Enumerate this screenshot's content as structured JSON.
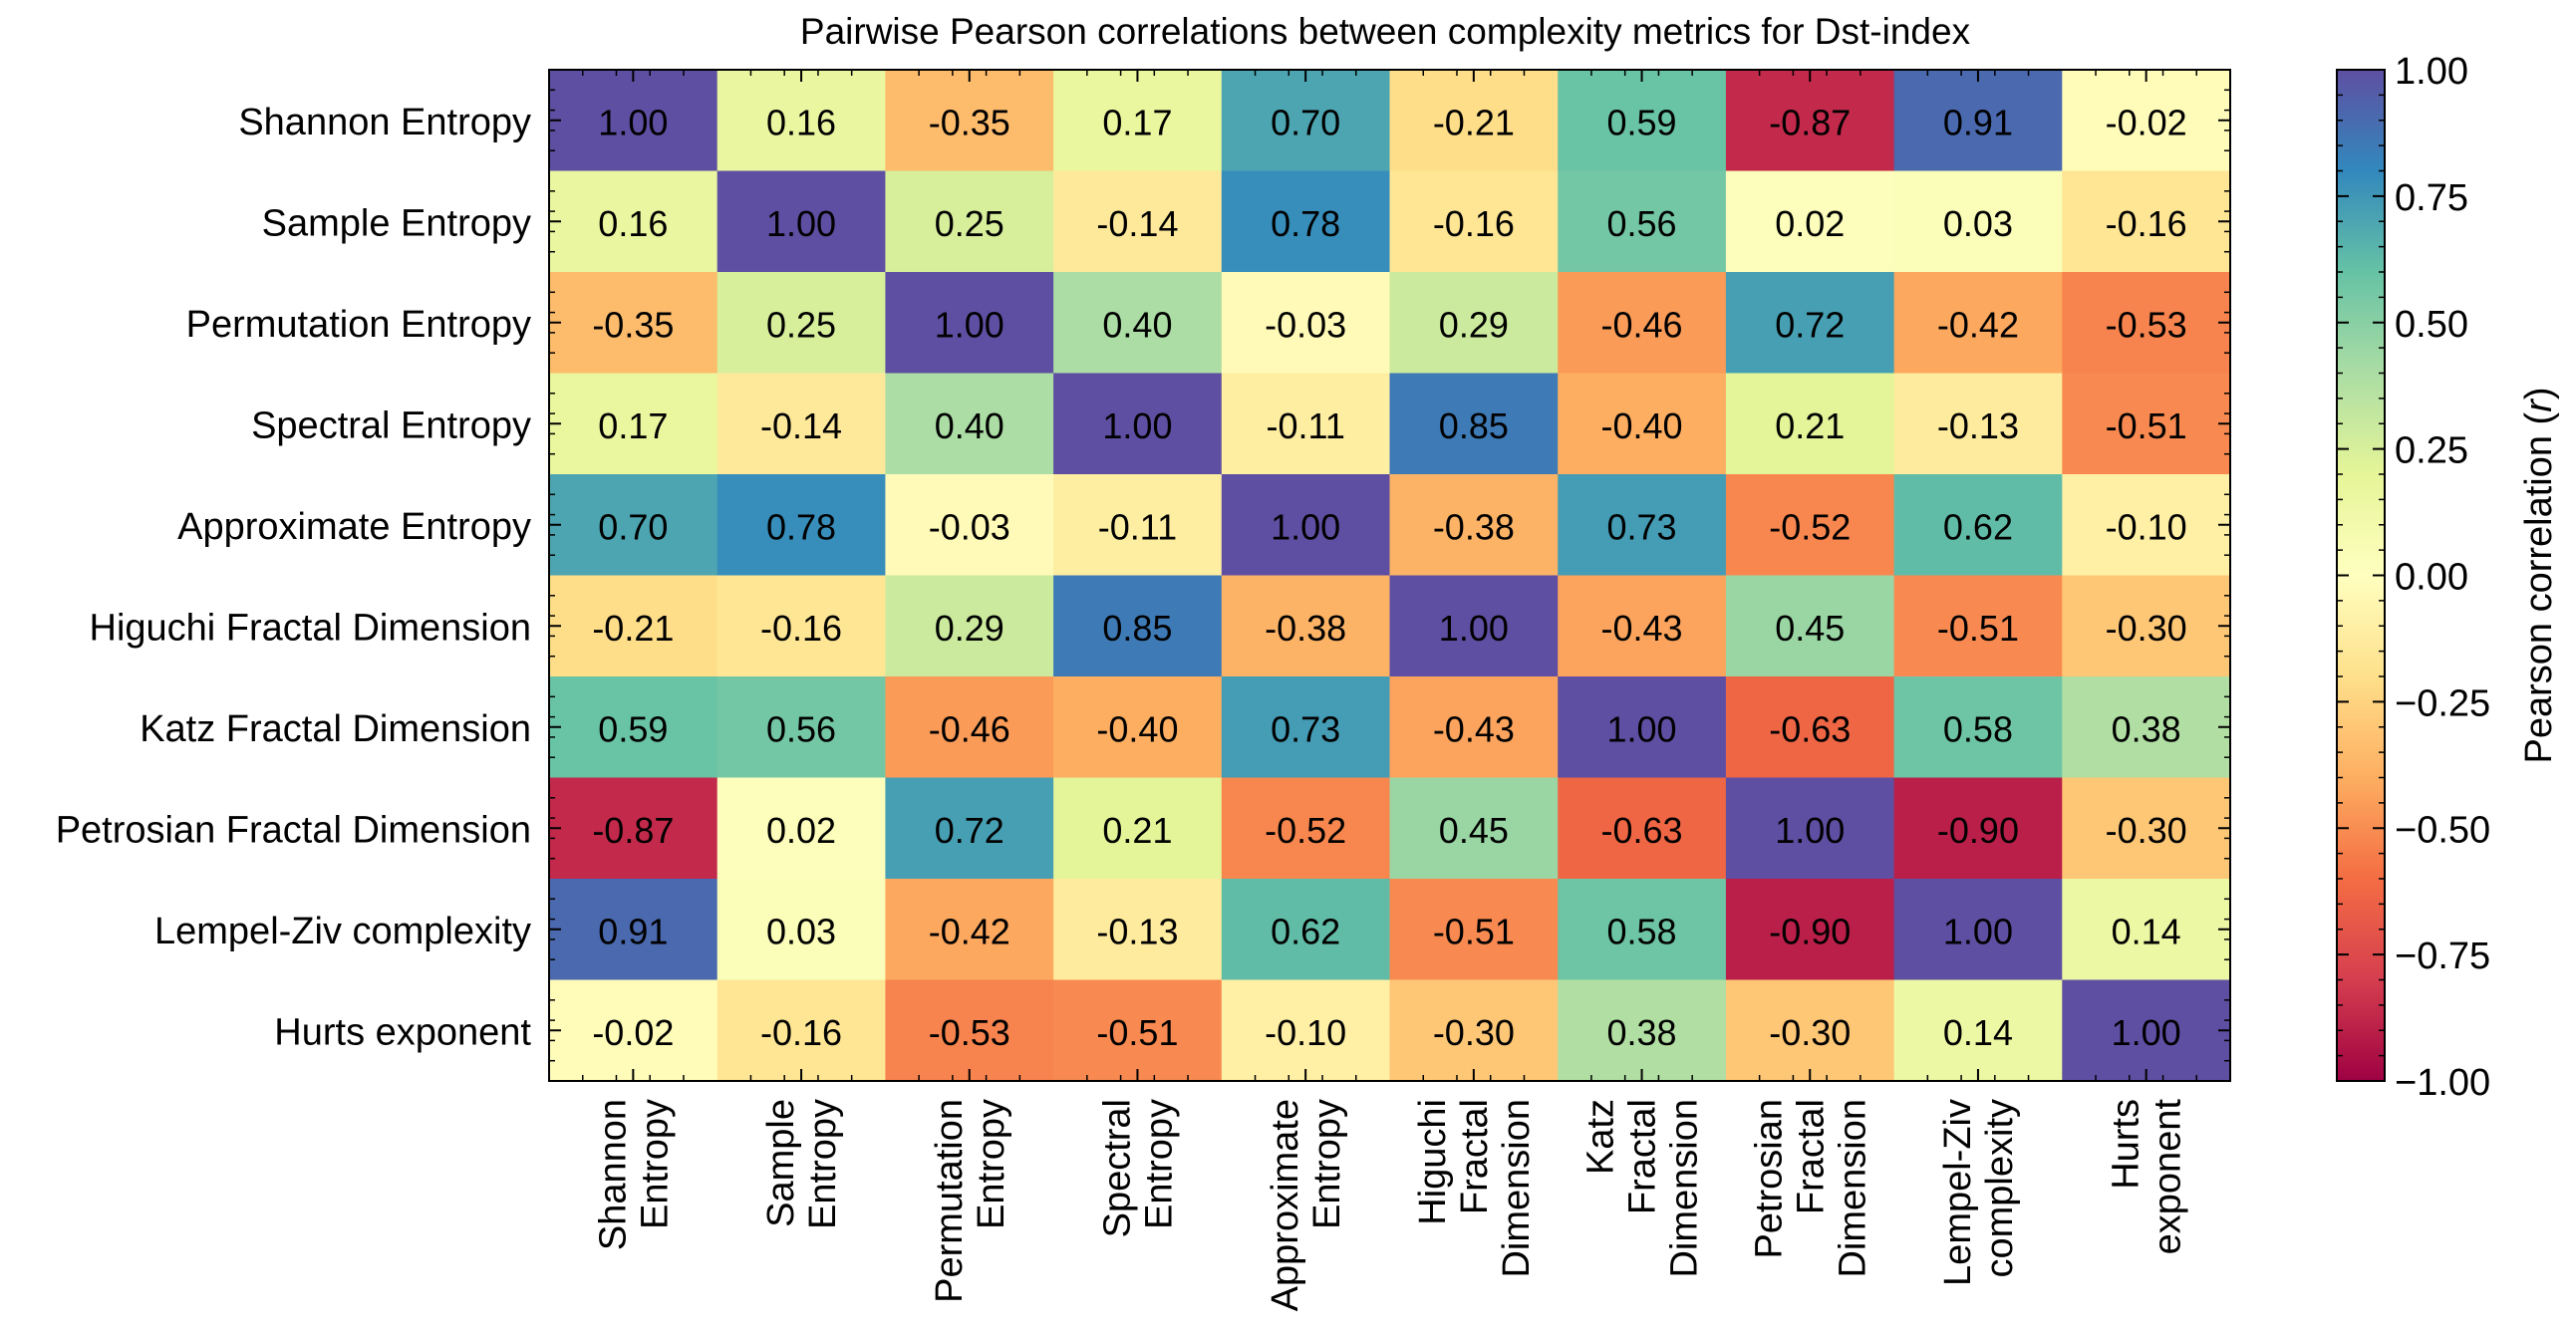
{
  "chart_data": {
    "type": "heatmap",
    "title": "Pairwise Pearson correlations between complexity metrics for Dst-index",
    "row_labels": [
      "Shannon Entropy",
      "Sample Entropy",
      "Permutation Entropy",
      "Spectral Entropy",
      "Approximate Entropy",
      "Higuchi Fractal Dimension",
      "Katz Fractal Dimension",
      "Petrosian Fractal Dimension",
      "Lempel-Ziv complexity",
      "Hurts exponent"
    ],
    "col_labels": [
      [
        "Shannon",
        "Entropy"
      ],
      [
        "Sample",
        "Entropy"
      ],
      [
        "Permutation",
        "Entropy"
      ],
      [
        "Spectral",
        "Entropy"
      ],
      [
        "Approximate",
        "Entropy"
      ],
      [
        "Higuchi",
        "Fractal",
        "Dimension"
      ],
      [
        "Katz",
        "Fractal",
        "Dimension"
      ],
      [
        "Petrosian",
        "Fractal",
        "Dimension"
      ],
      [
        "Lempel-Ziv",
        "complexity"
      ],
      [
        "Hurts",
        "exponent"
      ]
    ],
    "values": [
      [
        1.0,
        0.16,
        -0.35,
        0.17,
        0.7,
        -0.21,
        0.59,
        -0.87,
        0.91,
        -0.02
      ],
      [
        0.16,
        1.0,
        0.25,
        -0.14,
        0.78,
        -0.16,
        0.56,
        0.02,
        0.03,
        -0.16
      ],
      [
        -0.35,
        0.25,
        1.0,
        0.4,
        -0.03,
        0.29,
        -0.46,
        0.72,
        -0.42,
        -0.53
      ],
      [
        0.17,
        -0.14,
        0.4,
        1.0,
        -0.11,
        0.85,
        -0.4,
        0.21,
        -0.13,
        -0.51
      ],
      [
        0.7,
        0.78,
        -0.03,
        -0.11,
        1.0,
        -0.38,
        0.73,
        -0.52,
        0.62,
        -0.1
      ],
      [
        -0.21,
        -0.16,
        0.29,
        0.85,
        -0.38,
        1.0,
        -0.43,
        0.45,
        -0.51,
        -0.3
      ],
      [
        0.59,
        0.56,
        -0.46,
        -0.4,
        0.73,
        -0.43,
        1.0,
        -0.63,
        0.58,
        0.38
      ],
      [
        -0.87,
        0.02,
        0.72,
        0.21,
        -0.52,
        0.45,
        -0.63,
        1.0,
        -0.9,
        -0.3
      ],
      [
        0.91,
        0.03,
        -0.42,
        -0.13,
        0.62,
        -0.51,
        0.58,
        -0.9,
        1.0,
        0.14
      ],
      [
        -0.02,
        -0.16,
        -0.53,
        -0.51,
        -0.1,
        -0.3,
        0.38,
        -0.3,
        0.14,
        1.0
      ]
    ],
    "value_format": "2 decimals",
    "colormap": "Spectral",
    "colorbar": {
      "label": "Pearson correlation (r)",
      "label_prefix": "Pearson correlation (",
      "label_var": "r",
      "label_suffix": ")",
      "range": [
        -1.0,
        1.0
      ],
      "ticks": [
        1.0,
        0.75,
        0.5,
        0.25,
        0.0,
        -0.25,
        -0.5,
        -0.75,
        -1.0
      ],
      "tick_labels": [
        "1.00",
        "0.75",
        "0.50",
        "0.25",
        "0.00",
        "−0.25",
        "−0.50",
        "−0.75",
        "−1.00"
      ]
    }
  }
}
